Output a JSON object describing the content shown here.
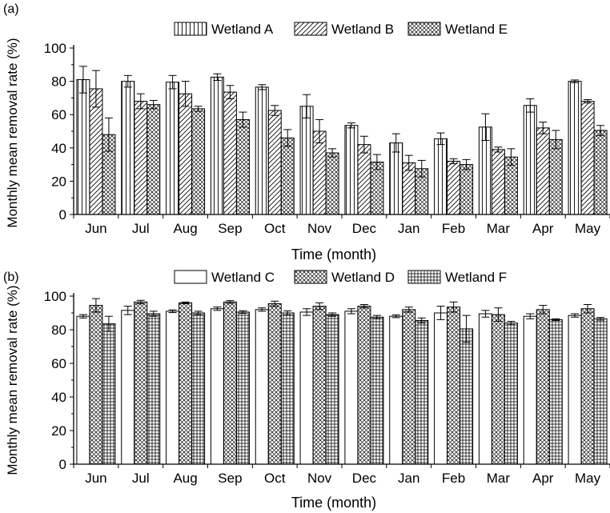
{
  "chart_data": [
    {
      "panel_label": "(a)",
      "type": "bar",
      "categories": [
        "Jun",
        "Jul",
        "Aug",
        "Sep",
        "Oct",
        "Nov",
        "Dec",
        "Jan",
        "Feb",
        "Mar",
        "Apr",
        "May"
      ],
      "series": [
        {
          "name": "Wetland A",
          "pattern": "vertical-lines",
          "values": [
            81,
            80,
            79.5,
            82.5,
            76.5,
            65,
            53.5,
            43,
            45.5,
            52.5,
            65.5,
            80
          ],
          "errors": [
            8,
            3.5,
            4,
            2,
            1.5,
            7,
            1.5,
            5.5,
            3.5,
            8,
            4,
            0.8
          ]
        },
        {
          "name": "Wetland B",
          "pattern": "diagonal-lines",
          "values": [
            75.5,
            68,
            72.5,
            73.5,
            62.5,
            50,
            42,
            31,
            32,
            39,
            52,
            68
          ],
          "errors": [
            11,
            4.5,
            7.5,
            4,
            3,
            7,
            5,
            4.5,
            1.5,
            1.5,
            3.5,
            1
          ]
        },
        {
          "name": "Wetland E",
          "pattern": "crosshatch",
          "values": [
            48,
            66,
            63.5,
            57,
            46,
            37,
            31.5,
            27.5,
            30,
            34.5,
            45,
            50.5
          ],
          "errors": [
            10,
            2.5,
            1.5,
            4.5,
            5,
            2.5,
            4.5,
            5,
            3,
            5,
            5.5,
            3
          ]
        }
      ],
      "xlabel": "Time (month)",
      "ylabel": "Monthly mean removal rate (%)",
      "ylim": [
        0,
        100
      ],
      "yticks": [
        0,
        20,
        40,
        60,
        80,
        100
      ],
      "legend_position": "top-center",
      "grid": false
    },
    {
      "panel_label": "(b)",
      "type": "bar",
      "categories": [
        "Jun",
        "Jul",
        "Aug",
        "Sep",
        "Oct",
        "Nov",
        "Dec",
        "Jan",
        "Feb",
        "Mar",
        "Apr",
        "May"
      ],
      "series": [
        {
          "name": "Wetland C",
          "pattern": "none",
          "values": [
            88,
            91.5,
            91,
            92.5,
            92,
            90.5,
            91,
            88,
            90,
            89.5,
            88,
            88.5
          ],
          "errors": [
            1,
            2.5,
            0.8,
            1,
            1,
            2,
            1.5,
            0.8,
            4,
            2,
            1.5,
            1
          ]
        },
        {
          "name": "Wetland D",
          "pattern": "crosshatch",
          "values": [
            94.5,
            96.5,
            96,
            96.5,
            95.5,
            94,
            94,
            92,
            93.5,
            89,
            92,
            92.5
          ],
          "errors": [
            4,
            1,
            0.5,
            0.8,
            1.5,
            2,
            1,
            1.5,
            3,
            4,
            2.5,
            2.5
          ]
        },
        {
          "name": "Wetland F",
          "pattern": "grid",
          "values": [
            83.5,
            89.5,
            90,
            90.5,
            90,
            89,
            87.5,
            85.5,
            80.5,
            84,
            86,
            86.5
          ],
          "errors": [
            4.5,
            1.5,
            1,
            0.8,
            1.2,
            1,
            1,
            1.5,
            8,
            1,
            0.5,
            0.8
          ]
        }
      ],
      "xlabel": "Time (month)",
      "ylabel": "Monthly mean removal rate (%)",
      "ylim": [
        0,
        100
      ],
      "yticks": [
        0,
        20,
        40,
        60,
        80,
        100
      ],
      "legend_position": "top-center",
      "grid": false
    }
  ]
}
